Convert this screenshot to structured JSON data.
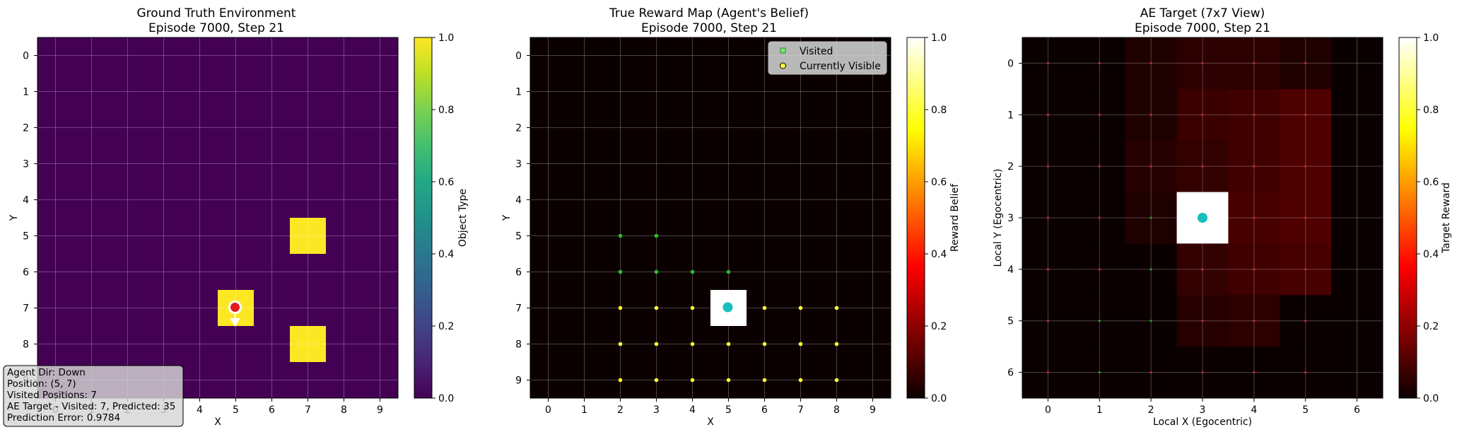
{
  "chart_data": [
    {
      "type": "heatmap",
      "title": "Ground Truth Environment",
      "subtitle": "Episode 7000, Step 21",
      "xlabel": "X",
      "ylabel": "Y",
      "xticks": [
        "0",
        "1",
        "2",
        "3",
        "4",
        "5",
        "6",
        "7",
        "8",
        "9"
      ],
      "yticks": [
        "0",
        "1",
        "2",
        "3",
        "4",
        "5",
        "6",
        "7",
        "8",
        "9"
      ],
      "colorbar": {
        "label": "Object Type",
        "colormap": "viridis",
        "range": [
          0,
          1
        ],
        "ticks": [
          "0.0",
          "0.2",
          "0.4",
          "0.6",
          "0.8",
          "1.0"
        ]
      },
      "grid": true,
      "background_value": 0,
      "cells": [
        {
          "x": 7,
          "y": 5,
          "value": 1
        },
        {
          "x": 5,
          "y": 7,
          "value": 1
        },
        {
          "x": 7,
          "y": 8,
          "value": 1
        }
      ],
      "agent": {
        "x": 5,
        "y": 7,
        "direction": "Down",
        "marker_color": "#e31a1c"
      },
      "info_box_lines": [
        "Agent Dir: Down",
        "Position: (5, 7)",
        "Visited Positions: 7",
        "AE Target - Visited: 7, Predicted: 35",
        "Prediction Error: 0.9784"
      ]
    },
    {
      "type": "heatmap",
      "title": "True Reward Map (Agent's Belief)",
      "subtitle": "Episode 7000, Step 21",
      "xlabel": "X",
      "ylabel": "Y",
      "xticks": [
        "0",
        "1",
        "2",
        "3",
        "4",
        "5",
        "6",
        "7",
        "8",
        "9"
      ],
      "yticks": [
        "0",
        "1",
        "2",
        "3",
        "4",
        "5",
        "6",
        "7",
        "8",
        "9"
      ],
      "colorbar": {
        "label": "Reward Belief",
        "colormap": "hot",
        "range": [
          0,
          1
        ],
        "ticks": [
          "0.0",
          "0.2",
          "0.4",
          "0.6",
          "0.8",
          "1.0"
        ]
      },
      "grid": true,
      "background_value": 0,
      "cells": [
        {
          "x": 5,
          "y": 7,
          "value": 1
        }
      ],
      "agent": {
        "x": 5,
        "y": 7,
        "marker_color": "#17bfbf"
      },
      "legend": {
        "position": "upper right",
        "entries": [
          "Visited",
          "Currently Visible"
        ]
      },
      "visited_points": [
        [
          2,
          5
        ],
        [
          3,
          5
        ],
        [
          2,
          6
        ],
        [
          3,
          6
        ],
        [
          4,
          6
        ],
        [
          5,
          6
        ]
      ],
      "visible_points": [
        [
          2,
          7
        ],
        [
          3,
          7
        ],
        [
          4,
          7
        ],
        [
          6,
          7
        ],
        [
          7,
          7
        ],
        [
          8,
          7
        ],
        [
          2,
          8
        ],
        [
          3,
          8
        ],
        [
          4,
          8
        ],
        [
          5,
          8
        ],
        [
          6,
          8
        ],
        [
          7,
          8
        ],
        [
          8,
          8
        ],
        [
          2,
          9
        ],
        [
          3,
          9
        ],
        [
          4,
          9
        ],
        [
          5,
          9
        ],
        [
          6,
          9
        ],
        [
          7,
          9
        ],
        [
          8,
          9
        ]
      ]
    },
    {
      "type": "heatmap",
      "title": "AE Target (7x7 View)",
      "subtitle": "Episode 7000, Step 21",
      "xlabel": "Local X (Egocentric)",
      "ylabel": "Local Y (Egocentric)",
      "xticks": [
        "0",
        "1",
        "2",
        "3",
        "4",
        "5",
        "6"
      ],
      "yticks": [
        "0",
        "1",
        "2",
        "3",
        "4",
        "5",
        "6"
      ],
      "colorbar": {
        "label": "Target Reward",
        "colormap": "hot",
        "range": [
          0,
          1
        ],
        "ticks": [
          "0.0",
          "0.2",
          "0.4",
          "0.6",
          "0.8",
          "1.0"
        ]
      },
      "grid": true,
      "values": [
        [
          0.0,
          0.0,
          0.03,
          0.05,
          0.05,
          0.03,
          0.0
        ],
        [
          0.0,
          0.0,
          0.03,
          0.07,
          0.08,
          0.1,
          0.0
        ],
        [
          0.0,
          0.0,
          0.04,
          0.06,
          0.08,
          0.1,
          0.0
        ],
        [
          0.0,
          0.0,
          0.03,
          1.0,
          0.09,
          0.1,
          0.0
        ],
        [
          0.0,
          0.0,
          0.0,
          0.06,
          0.08,
          0.09,
          0.0
        ],
        [
          0.0,
          0.0,
          0.0,
          0.04,
          0.05,
          0.0,
          0.0
        ],
        [
          0.0,
          0.0,
          0.0,
          0.0,
          0.0,
          0.0,
          0.0
        ]
      ],
      "agent": {
        "x": 3,
        "y": 3,
        "marker_color": "#17bfbf"
      },
      "visited_points": [
        [
          2,
          3
        ],
        [
          1,
          5
        ],
        [
          2,
          5
        ],
        [
          1,
          6
        ],
        [
          2,
          4
        ]
      ]
    }
  ]
}
